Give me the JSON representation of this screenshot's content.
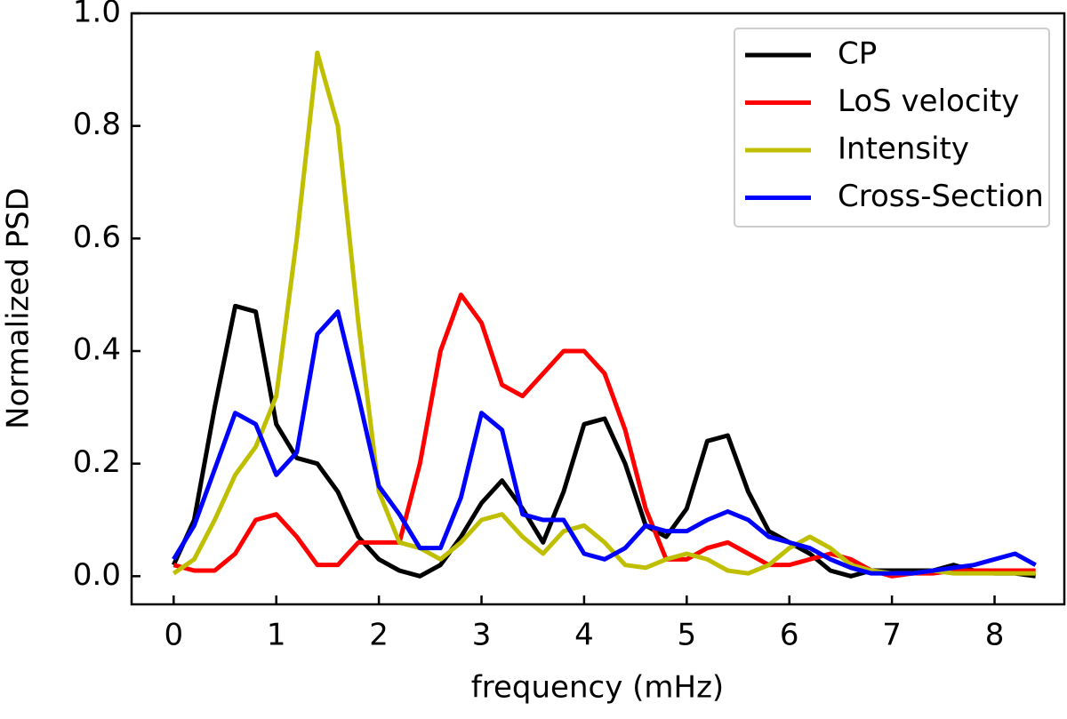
{
  "chart_data": {
    "type": "line",
    "xlabel": "frequency (mHz)",
    "ylabel": "Normalized PSD",
    "x": [
      0,
      0.2,
      0.4,
      0.6,
      0.8,
      1.0,
      1.2,
      1.4,
      1.6,
      1.8,
      2.0,
      2.2,
      2.4,
      2.6,
      2.8,
      3.0,
      3.2,
      3.4,
      3.6,
      3.8,
      4.0,
      4.2,
      4.4,
      4.6,
      4.8,
      5.0,
      5.2,
      5.4,
      5.6,
      5.8,
      6.0,
      6.2,
      6.4,
      6.6,
      6.8,
      7.0,
      7.2,
      7.4,
      7.6,
      7.8,
      8.0,
      8.2,
      8.4
    ],
    "series": [
      {
        "name": "CP",
        "color": "#000000",
        "values": [
          0.02,
          0.1,
          0.3,
          0.48,
          0.47,
          0.27,
          0.21,
          0.2,
          0.15,
          0.07,
          0.03,
          0.01,
          0.0,
          0.02,
          0.07,
          0.13,
          0.17,
          0.12,
          0.06,
          0.15,
          0.27,
          0.28,
          0.2,
          0.09,
          0.07,
          0.12,
          0.24,
          0.25,
          0.15,
          0.08,
          0.06,
          0.04,
          0.01,
          0.0,
          0.01,
          0.01,
          0.01,
          0.01,
          0.02,
          0.01,
          0.005,
          0.005,
          0.0
        ]
      },
      {
        "name": "LoS velocity",
        "color": "#ff0000",
        "values": [
          0.02,
          0.01,
          0.01,
          0.04,
          0.1,
          0.11,
          0.07,
          0.02,
          0.02,
          0.06,
          0.06,
          0.06,
          0.2,
          0.4,
          0.5,
          0.45,
          0.34,
          0.32,
          0.36,
          0.4,
          0.4,
          0.36,
          0.26,
          0.12,
          0.03,
          0.03,
          0.05,
          0.06,
          0.04,
          0.02,
          0.02,
          0.03,
          0.04,
          0.03,
          0.01,
          0.0,
          0.005,
          0.005,
          0.01,
          0.01,
          0.01,
          0.01,
          0.01
        ]
      },
      {
        "name": "Intensity",
        "color": "#bfbf00",
        "values": [
          0.005,
          0.03,
          0.1,
          0.18,
          0.23,
          0.32,
          0.6,
          0.93,
          0.8,
          0.45,
          0.15,
          0.06,
          0.05,
          0.03,
          0.06,
          0.1,
          0.11,
          0.07,
          0.04,
          0.08,
          0.09,
          0.06,
          0.02,
          0.015,
          0.03,
          0.04,
          0.03,
          0.01,
          0.005,
          0.02,
          0.05,
          0.07,
          0.05,
          0.02,
          0.01,
          0.005,
          0.005,
          0.01,
          0.005,
          0.005,
          0.005,
          0.005,
          0.005
        ]
      },
      {
        "name": "Cross-Section",
        "color": "#0000ff",
        "values": [
          0.03,
          0.09,
          0.19,
          0.29,
          0.27,
          0.18,
          0.22,
          0.43,
          0.47,
          0.32,
          0.16,
          0.11,
          0.05,
          0.05,
          0.14,
          0.29,
          0.26,
          0.11,
          0.1,
          0.1,
          0.04,
          0.03,
          0.05,
          0.09,
          0.08,
          0.08,
          0.1,
          0.115,
          0.1,
          0.07,
          0.06,
          0.05,
          0.03,
          0.015,
          0.005,
          0.005,
          0.005,
          0.01,
          0.015,
          0.02,
          0.03,
          0.04,
          0.02
        ]
      }
    ],
    "xlim": [
      -0.41,
      8.68
    ],
    "ylim": [
      -0.05,
      1.0
    ],
    "xticks": [
      0,
      1,
      2,
      3,
      4,
      5,
      6,
      7,
      8
    ],
    "yticks": [
      {
        "value": 0,
        "label": "0.0"
      },
      0.2,
      0.4,
      0.6,
      0.8,
      {
        "value": 1,
        "label": "1.0"
      }
    ],
    "legend": "upper right"
  }
}
